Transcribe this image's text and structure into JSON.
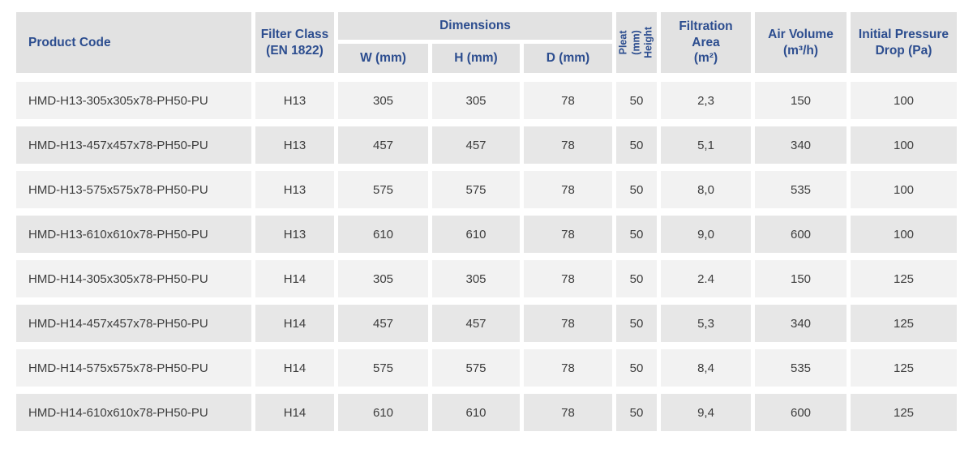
{
  "theme": {
    "header_bg": "#e2e2e2",
    "row_odd_bg": "#f2f2f2",
    "row_even_bg": "#e7e7e7",
    "header_text": "#2c4d8f",
    "body_text": "#3d3d3d",
    "page_bg": "#ffffff"
  },
  "table": {
    "headers": {
      "product_code": "Product Code",
      "filter_class": "Filter Class\n(EN 1822)",
      "dimensions_group": "Dimensions",
      "w": "W (mm)",
      "h": "H (mm)",
      "d": "D (mm)",
      "pleat_height": "Pleat (mm)\nHeight",
      "filtration_area": "Filtration\nArea\n(m²)",
      "air_volume": "Air Volume\n(m³/h)",
      "initial_pressure_drop": "Initial Pressure\nDrop (Pa)"
    },
    "rows": [
      {
        "code": "HMD-H13-305x305x78-PH50-PU",
        "filter_class": "H13",
        "w": "305",
        "h": "305",
        "d": "78",
        "pleat": "50",
        "area": "2,3",
        "air_volume": "150",
        "pressure_drop": "100"
      },
      {
        "code": "HMD-H13-457x457x78-PH50-PU",
        "filter_class": "H13",
        "w": "457",
        "h": "457",
        "d": "78",
        "pleat": "50",
        "area": "5,1",
        "air_volume": "340",
        "pressure_drop": "100"
      },
      {
        "code": "HMD-H13-575x575x78-PH50-PU",
        "filter_class": "H13",
        "w": "575",
        "h": "575",
        "d": "78",
        "pleat": "50",
        "area": "8,0",
        "air_volume": "535",
        "pressure_drop": "100"
      },
      {
        "code": "HMD-H13-610x610x78-PH50-PU",
        "filter_class": "H13",
        "w": "610",
        "h": "610",
        "d": "78",
        "pleat": "50",
        "area": "9,0",
        "air_volume": "600",
        "pressure_drop": "100"
      },
      {
        "code": "HMD-H14-305x305x78-PH50-PU",
        "filter_class": "H14",
        "w": "305",
        "h": "305",
        "d": "78",
        "pleat": "50",
        "area": "2.4",
        "air_volume": "150",
        "pressure_drop": "125"
      },
      {
        "code": "HMD-H14-457x457x78-PH50-PU",
        "filter_class": "H14",
        "w": "457",
        "h": "457",
        "d": "78",
        "pleat": "50",
        "area": "5,3",
        "air_volume": "340",
        "pressure_drop": "125"
      },
      {
        "code": "HMD-H14-575x575x78-PH50-PU",
        "filter_class": "H14",
        "w": "575",
        "h": "575",
        "d": "78",
        "pleat": "50",
        "area": "8,4",
        "air_volume": "535",
        "pressure_drop": "125"
      },
      {
        "code": "HMD-H14-610x610x78-PH50-PU",
        "filter_class": "H14",
        "w": "610",
        "h": "610",
        "d": "78",
        "pleat": "50",
        "area": "9,4",
        "air_volume": "600",
        "pressure_drop": "125"
      }
    ]
  }
}
